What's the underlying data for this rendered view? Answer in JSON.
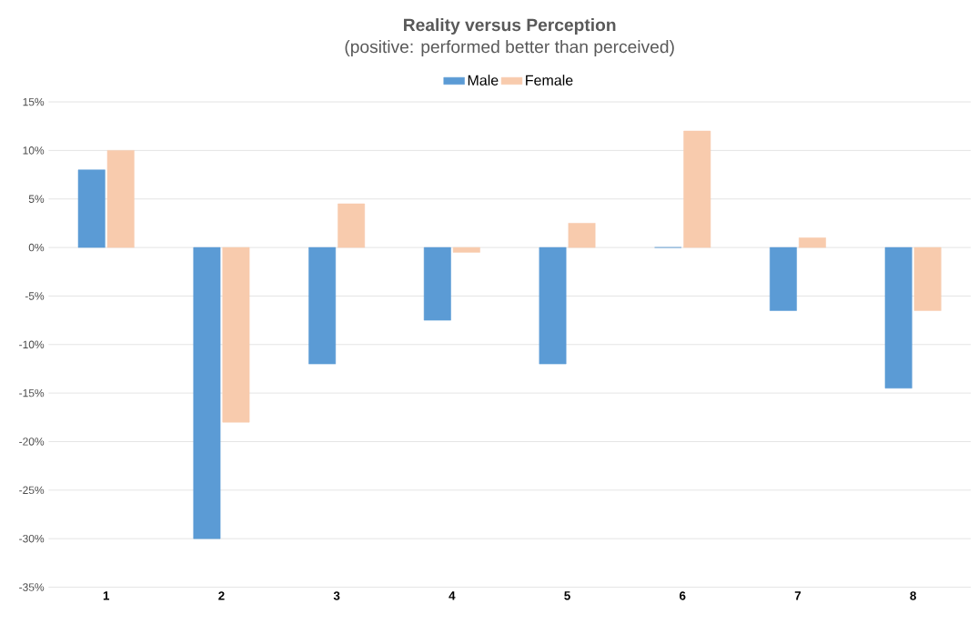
{
  "chart_data": {
    "type": "bar",
    "title": "Reality versus Perception",
    "subtitle": "(positive: performed better than perceived)",
    "categories": [
      "1",
      "2",
      "3",
      "4",
      "5",
      "6",
      "7",
      "8"
    ],
    "series": [
      {
        "name": "Male",
        "color": "#5b9bd5",
        "values": [
          8,
          -30,
          -12,
          -7.5,
          -12,
          0,
          -6.5,
          -14.5
        ]
      },
      {
        "name": "Female",
        "color": "#f8cbad",
        "values": [
          10,
          -18,
          4.5,
          -0.5,
          2.5,
          12,
          1,
          -6.5
        ]
      }
    ],
    "ylim": [
      -35,
      15
    ],
    "yticks": [
      {
        "value": -35,
        "label": "-35%"
      },
      {
        "value": -30,
        "label": "-30%"
      },
      {
        "value": -25,
        "label": "-25%"
      },
      {
        "value": -20,
        "label": "-20%"
      },
      {
        "value": -15,
        "label": "-15%"
      },
      {
        "value": -10,
        "label": "-10%"
      },
      {
        "value": -5,
        "label": "-5%"
      },
      {
        "value": 0,
        "label": "0%"
      },
      {
        "value": 5,
        "label": "5%"
      },
      {
        "value": 10,
        "label": "10%"
      },
      {
        "value": 15,
        "label": "15%"
      }
    ],
    "grid": "y",
    "legend": "top"
  }
}
